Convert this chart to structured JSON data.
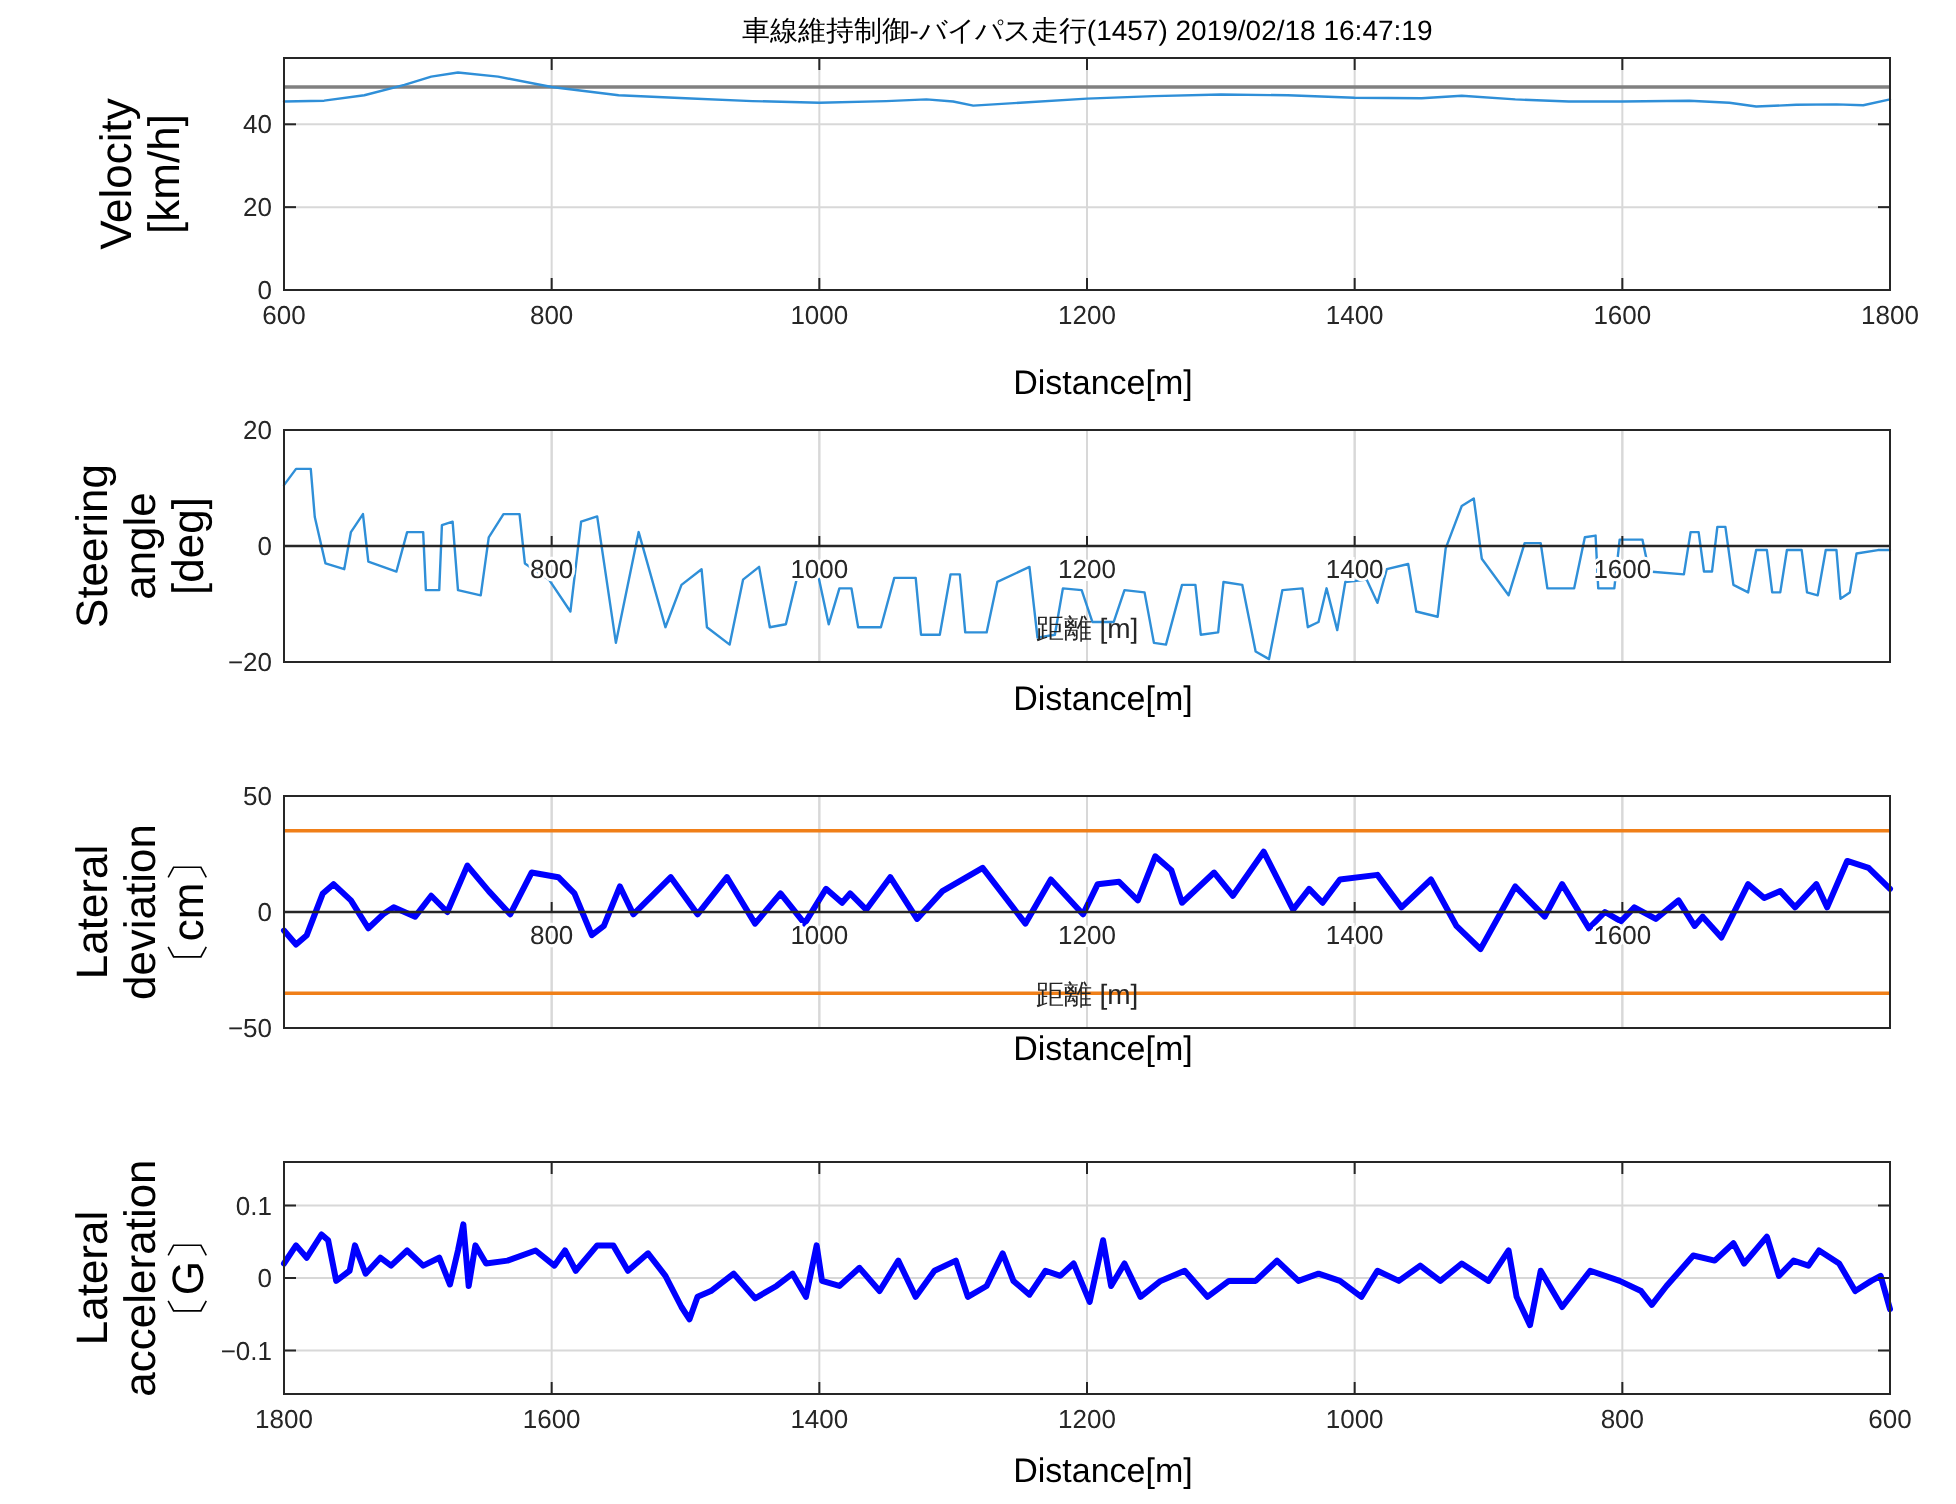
{
  "chart_data": [
    {
      "type": "line",
      "title": "車線維持制御-バイパス走行(1457)  2019/02/18 16:47:19",
      "xlabel": "Distance[m]",
      "ylabel": "Velocity\n[km/h]",
      "xlim": [
        600,
        1800
      ],
      "xticks": [
        600,
        800,
        1000,
        1200,
        1400,
        1600,
        1800
      ],
      "ylim": [
        0,
        56
      ],
      "yticks": [
        0,
        20,
        40
      ],
      "grid": true,
      "ref_lines": [
        {
          "axis": "y",
          "value": 49,
          "color": "#808080"
        }
      ],
      "series": [
        {
          "color": "#2f8fd8",
          "x": [
            600,
            630,
            660,
            690,
            710,
            730,
            760,
            800,
            850,
            900,
            950,
            1000,
            1050,
            1080,
            1100,
            1115,
            1150,
            1200,
            1250,
            1300,
            1350,
            1400,
            1450,
            1480,
            1520,
            1560,
            1600,
            1650,
            1680,
            1700,
            1730,
            1760,
            1780,
            1800
          ],
          "values": [
            45.5,
            45.7,
            47,
            49.5,
            51.5,
            52.5,
            51.5,
            49,
            47,
            46.3,
            45.6,
            45.2,
            45.6,
            46,
            45.5,
            44.5,
            45.2,
            46.2,
            46.8,
            47.2,
            47,
            46.4,
            46.3,
            46.9,
            46,
            45.5,
            45.5,
            45.7,
            45.2,
            44.3,
            44.7,
            44.8,
            44.6,
            46
          ]
        }
      ]
    },
    {
      "type": "line",
      "xlabel": "Distance[m]",
      "ylabel": "Steering\nangle\n[deg]",
      "annotations": [
        "距離 [m]"
      ],
      "xlim": [
        600,
        1800
      ],
      "xticks": [
        800,
        1000,
        1200,
        1400,
        1600
      ],
      "ylim": [
        -20,
        20
      ],
      "yticks": [
        -20,
        0,
        20
      ],
      "grid": true,
      "series": [
        {
          "color": "#2f8fd8",
          "x": [
            600,
            609,
            620,
            623,
            631,
            645,
            650,
            659,
            663,
            684,
            692,
            704,
            706,
            716,
            718,
            726,
            730,
            747,
            753,
            764,
            776,
            780,
            798,
            814,
            822,
            834,
            848,
            865,
            875,
            885,
            897,
            912,
            916,
            933,
            943,
            955,
            963,
            975,
            983,
            999,
            1007,
            1015,
            1024,
            1029,
            1046,
            1056,
            1072,
            1076,
            1090,
            1098,
            1105,
            1109,
            1125,
            1133,
            1157,
            1163,
            1176,
            1182,
            1196,
            1204,
            1220,
            1228,
            1243,
            1250,
            1259,
            1271,
            1281,
            1285,
            1298,
            1302,
            1316,
            1326,
            1336,
            1346,
            1361,
            1365,
            1373,
            1379,
            1387,
            1393,
            1409,
            1417,
            1424,
            1440,
            1446,
            1462,
            1468,
            1480,
            1489,
            1495,
            1515,
            1527,
            1539,
            1544,
            1564,
            1572,
            1580,
            1582,
            1594,
            1598,
            1615,
            1620,
            1646,
            1651,
            1657,
            1661,
            1667,
            1671,
            1677,
            1683,
            1694,
            1700,
            1708,
            1712,
            1718,
            1723,
            1734,
            1738,
            1746,
            1752,
            1760,
            1763,
            1770,
            1775,
            1791,
            1800
          ],
          "values": [
            10.5,
            13.3,
            13.3,
            5,
            -3,
            -4,
            2.4,
            5.5,
            -2.7,
            -4.4,
            2.4,
            2.4,
            -7.6,
            -7.6,
            3.6,
            4.2,
            -7.6,
            -8.5,
            1.5,
            5.5,
            5.5,
            -3,
            -5.8,
            -11.3,
            4.2,
            5.1,
            -16.7,
            2.4,
            -5.8,
            -14,
            -6.7,
            -4,
            -14,
            -17,
            -5.8,
            -3.6,
            -14,
            -13.5,
            -5.8,
            -4.9,
            -13.5,
            -7.3,
            -7.3,
            -14,
            -14,
            -5.5,
            -5.5,
            -15.3,
            -15.3,
            -4.9,
            -4.9,
            -14.9,
            -14.9,
            -6.2,
            -3.6,
            -15.8,
            -15.3,
            -7.3,
            -7.6,
            -13.1,
            -13.1,
            -7.6,
            -8,
            -16.7,
            -17,
            -6.7,
            -6.7,
            -15.3,
            -14.9,
            -6.2,
            -6.7,
            -18.2,
            -19.5,
            -7.6,
            -7.3,
            -14,
            -13.1,
            -7.3,
            -14.5,
            -6.2,
            -5.8,
            -9.8,
            -4,
            -3.1,
            -11.3,
            -12.2,
            -0.4,
            6.9,
            8.2,
            -2.2,
            -8.5,
            0.5,
            0.5,
            -7.3,
            -7.3,
            1.5,
            1.8,
            -7.3,
            -7.3,
            1.1,
            1.1,
            -4.4,
            -4.9,
            2.4,
            2.4,
            -4.4,
            -4.4,
            3.3,
            3.3,
            -6.7,
            -8,
            -0.7,
            -0.7,
            -8,
            -8,
            -0.7,
            -0.7,
            -8,
            -8.5,
            -0.7,
            -0.7,
            -9.1,
            -8,
            -1.3,
            -0.7,
            -0.7
          ]
        }
      ]
    },
    {
      "type": "line",
      "xlabel": "Distance[m]",
      "ylabel": "Lateral\ndeviation\n〔cm〕",
      "annotations": [
        "距離 [m]"
      ],
      "xlim": [
        600,
        1800
      ],
      "xticks": [
        800,
        1000,
        1200,
        1400,
        1600
      ],
      "ylim": [
        -50,
        50
      ],
      "yticks": [
        -50,
        0,
        50
      ],
      "grid": true,
      "ref_lines": [
        {
          "axis": "y",
          "value": 35,
          "color": "#f07f18"
        },
        {
          "axis": "y",
          "value": -35,
          "color": "#f07f18"
        }
      ],
      "series": [
        {
          "color": "#0000ff",
          "x": [
            600,
            609,
            617,
            629,
            637,
            650,
            663,
            674,
            682,
            698,
            710,
            722,
            737,
            753,
            769,
            785,
            805,
            817,
            830,
            839,
            851,
            861,
            889,
            909,
            931,
            952,
            971,
            989,
            1005,
            1017,
            1023,
            1035,
            1053,
            1073,
            1092,
            1122,
            1154,
            1173,
            1197,
            1208,
            1224,
            1238,
            1251,
            1263,
            1271,
            1295,
            1309,
            1332,
            1354,
            1366,
            1376,
            1389,
            1417,
            1435,
            1457,
            1476,
            1494,
            1520,
            1542,
            1555,
            1575,
            1587,
            1599,
            1609,
            1625,
            1642,
            1654,
            1660,
            1674,
            1694,
            1706,
            1718,
            1729,
            1745,
            1753,
            1768,
            1784,
            1800
          ],
          "values": [
            -8,
            -14,
            -10,
            8,
            12,
            5,
            -7,
            -1,
            2,
            -2,
            7,
            0,
            20,
            9,
            -1,
            17,
            15,
            8,
            -10,
            -6,
            11,
            -1,
            15,
            -1,
            15,
            -5,
            8,
            -5,
            10,
            4,
            8,
            1,
            15,
            -3,
            9,
            19,
            -5,
            14,
            -1,
            12,
            13,
            5,
            24,
            18,
            4,
            17,
            7,
            26,
            1,
            10,
            4,
            14,
            16,
            2,
            14,
            -6,
            -16,
            11,
            -2,
            12,
            -7,
            0,
            -4,
            2,
            -3,
            5,
            -6,
            -2,
            -11,
            12,
            6,
            9,
            2,
            12,
            2,
            22,
            19,
            10
          ]
        }
      ]
    },
    {
      "type": "line",
      "xlabel": "Distance[m]",
      "ylabel": "Lateral\nacceleration\n〔G〕",
      "xlim": [
        1800,
        600
      ],
      "xticks": [
        1800,
        1600,
        1400,
        1200,
        1000,
        800,
        600
      ],
      "ylim": [
        -0.16,
        0.16
      ],
      "yticks": [
        -0.1,
        0,
        0.1
      ],
      "grid": true,
      "series": [
        {
          "color": "#0000ff",
          "x": [
            1800,
            1791,
            1783,
            1772,
            1767,
            1761,
            1751,
            1747,
            1739,
            1728,
            1720,
            1708,
            1696,
            1684,
            1676,
            1670,
            1666,
            1662,
            1657,
            1649,
            1633,
            1612,
            1598,
            1590,
            1582,
            1566,
            1554,
            1543,
            1528,
            1515,
            1503,
            1497,
            1491,
            1481,
            1464,
            1448,
            1432,
            1420,
            1410,
            1402,
            1398,
            1385,
            1370,
            1355,
            1341,
            1328,
            1314,
            1298,
            1289,
            1275,
            1263,
            1255,
            1243,
            1231,
            1220,
            1210,
            1198,
            1188,
            1182,
            1172,
            1160,
            1145,
            1127,
            1110,
            1094,
            1074,
            1058,
            1042,
            1027,
            1011,
            995,
            983,
            967,
            951,
            936,
            920,
            900,
            885,
            879,
            869,
            861,
            845,
            824,
            802,
            786,
            778,
            767,
            747,
            731,
            717,
            709,
            692,
            683,
            672,
            661,
            653,
            638,
            626,
            614,
            607,
            600
          ],
          "values": [
            0.02,
            0.045,
            0.028,
            0.06,
            0.052,
            -0.004,
            0.01,
            0.045,
            0.006,
            0.028,
            0.017,
            0.038,
            0.017,
            0.028,
            -0.009,
            0.038,
            0.074,
            -0.011,
            0.045,
            0.02,
            0.024,
            0.038,
            0.017,
            0.038,
            0.01,
            0.045,
            0.045,
            0.01,
            0.034,
            0.003,
            -0.04,
            -0.057,
            -0.026,
            -0.018,
            0.006,
            -0.028,
            -0.011,
            0.006,
            -0.026,
            0.045,
            -0.004,
            -0.011,
            0.014,
            -0.018,
            0.024,
            -0.026,
            0.01,
            0.024,
            -0.026,
            -0.011,
            0.034,
            -0.004,
            -0.023,
            0.01,
            0.003,
            0.02,
            -0.033,
            0.052,
            -0.011,
            0.02,
            -0.026,
            -0.004,
            0.01,
            -0.026,
            -0.004,
            -0.004,
            0.024,
            -0.004,
            0.006,
            -0.004,
            -0.026,
            0.01,
            -0.004,
            0.017,
            -0.004,
            0.02,
            -0.004,
            0.038,
            -0.026,
            -0.065,
            0.01,
            -0.04,
            0.01,
            -0.004,
            -0.018,
            -0.037,
            -0.011,
            0.031,
            0.024,
            0.048,
            0.02,
            0.057,
            0.003,
            0.024,
            0.017,
            0.038,
            0.02,
            -0.018,
            -0.004,
            0.003,
            -0.043
          ]
        }
      ]
    }
  ]
}
